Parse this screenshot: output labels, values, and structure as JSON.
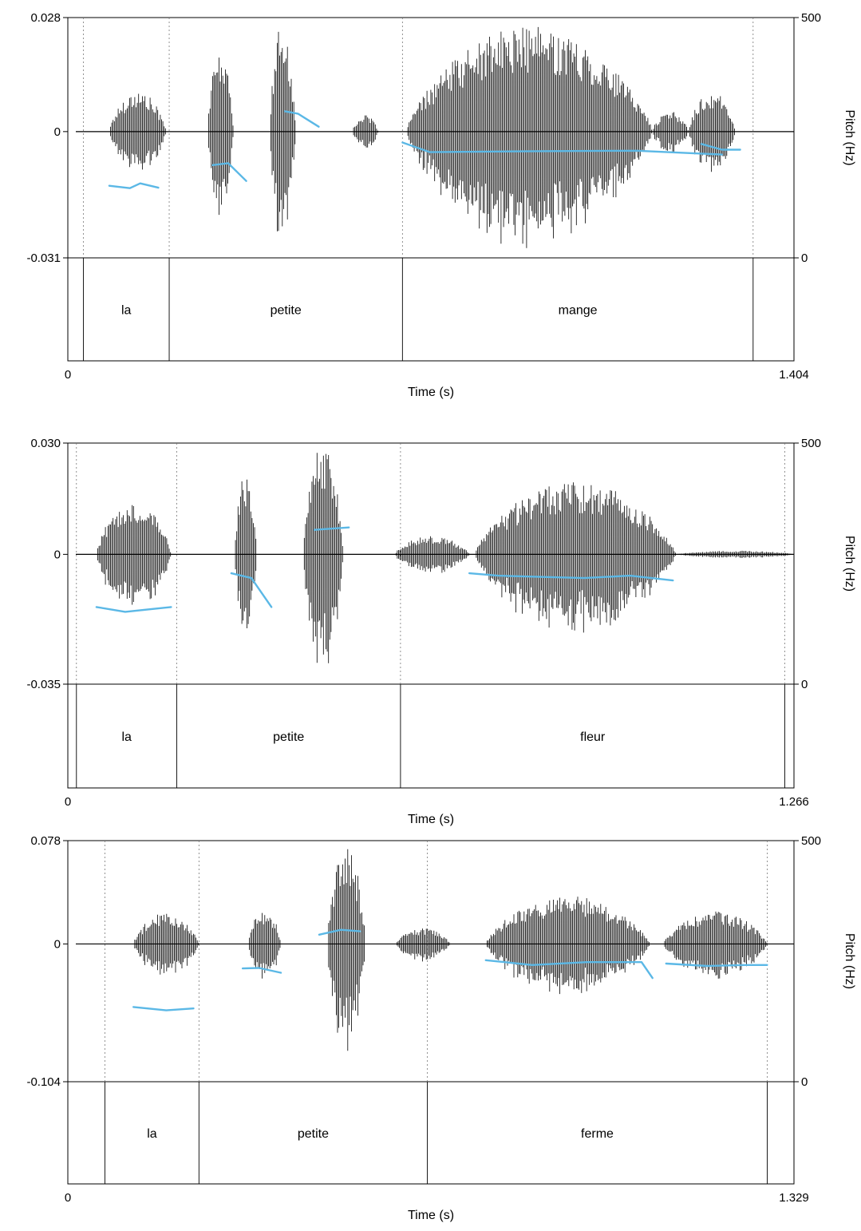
{
  "chart_data": [
    {
      "type": "line",
      "title": "",
      "xlabel": "Time (s)",
      "ylabel_right": "Pitch (Hz)",
      "x_range": [
        0,
        1.404
      ],
      "x_tick_labels": [
        "0",
        "1.404"
      ],
      "amplitude_range": [
        -0.031,
        0.028
      ],
      "amplitude_tick_labels": [
        "0.028",
        "0",
        "-0.031"
      ],
      "pitch_range": [
        0,
        500
      ],
      "pitch_tick_labels": [
        "500",
        "0"
      ],
      "pitch_color": "#5BB8E6",
      "waveform_color": "#000000",
      "words": [
        {
          "label": "la",
          "start": 0.03,
          "end": 0.196
        },
        {
          "label": "petite",
          "start": 0.196,
          "end": 0.647
        },
        {
          "label": "mange",
          "start": 0.647,
          "end": 1.325
        }
      ],
      "segments": [
        {
          "start": 0.08,
          "end": 0.19,
          "peak": 0.01
        },
        {
          "start": 0.27,
          "end": 0.32,
          "peak": 0.02
        },
        {
          "start": 0.39,
          "end": 0.44,
          "peak": 0.027
        },
        {
          "start": 0.55,
          "end": 0.6,
          "peak": 0.004
        },
        {
          "start": 0.655,
          "end": 1.13,
          "peak": 0.026
        },
        {
          "start": 1.13,
          "end": 1.2,
          "peak": 0.005
        },
        {
          "start": 1.2,
          "end": 1.29,
          "peak": 0.01
        }
      ],
      "pitch_contours": [
        [
          [
            0.08,
            150
          ],
          [
            0.12,
            145
          ],
          [
            0.14,
            155
          ],
          [
            0.175,
            146
          ]
        ],
        [
          [
            0.28,
            193
          ],
          [
            0.31,
            197
          ],
          [
            0.345,
            160
          ]
        ],
        [
          [
            0.42,
            305
          ],
          [
            0.445,
            300
          ],
          [
            0.485,
            273
          ]
        ],
        [
          [
            0.647,
            240
          ],
          [
            0.7,
            220
          ],
          [
            0.9,
            222
          ],
          [
            1.1,
            223
          ],
          [
            1.265,
            215
          ]
        ],
        [
          [
            1.225,
            237
          ],
          [
            1.265,
            225
          ],
          [
            1.3,
            225
          ]
        ]
      ]
    },
    {
      "type": "line",
      "title": "",
      "xlabel": "Time (s)",
      "ylabel_right": "Pitch (Hz)",
      "x_range": [
        0,
        1.266
      ],
      "x_tick_labels": [
        "0",
        "1.266"
      ],
      "amplitude_range": [
        -0.035,
        0.03
      ],
      "amplitude_tick_labels": [
        "0.030",
        "0",
        "-0.035"
      ],
      "pitch_range": [
        0,
        500
      ],
      "pitch_tick_labels": [
        "500",
        "0"
      ],
      "pitch_color": "#5BB8E6",
      "waveform_color": "#000000",
      "words": [
        {
          "label": "la",
          "start": 0.015,
          "end": 0.19
        },
        {
          "label": "petite",
          "start": 0.19,
          "end": 0.58
        },
        {
          "label": "fleur",
          "start": 0.58,
          "end": 1.25
        }
      ],
      "segments": [
        {
          "start": 0.05,
          "end": 0.18,
          "peak": 0.015
        },
        {
          "start": 0.29,
          "end": 0.33,
          "peak": 0.022
        },
        {
          "start": 0.41,
          "end": 0.48,
          "peak": 0.03
        },
        {
          "start": 0.57,
          "end": 0.7,
          "peak": 0.005
        },
        {
          "start": 0.71,
          "end": 1.06,
          "peak": 0.02
        },
        {
          "start": 1.06,
          "end": 1.266,
          "peak": 0.001
        }
      ],
      "pitch_contours": [
        [
          [
            0.05,
            160
          ],
          [
            0.1,
            150
          ],
          [
            0.18,
            160
          ]
        ],
        [
          [
            0.285,
            230
          ],
          [
            0.32,
            220
          ],
          [
            0.355,
            160
          ]
        ],
        [
          [
            0.43,
            320
          ],
          [
            0.49,
            325
          ]
        ],
        [
          [
            0.7,
            230
          ],
          [
            0.75,
            225
          ],
          [
            0.9,
            220
          ],
          [
            0.98,
            225
          ],
          [
            1.055,
            215
          ]
        ]
      ]
    },
    {
      "type": "line",
      "title": "",
      "xlabel": "Time (s)",
      "ylabel_right": "Pitch (Hz)",
      "x_range": [
        0,
        1.329
      ],
      "x_tick_labels": [
        "0",
        "1.329"
      ],
      "amplitude_range": [
        -0.104,
        0.078
      ],
      "amplitude_tick_labels": [
        "0.078",
        "0",
        "-0.104"
      ],
      "pitch_range": [
        0,
        500
      ],
      "pitch_tick_labels": [
        "500",
        "0"
      ],
      "pitch_color": "#5BB8E6",
      "waveform_color": "#000000",
      "words": [
        {
          "label": "la",
          "start": 0.068,
          "end": 0.24
        },
        {
          "label": "petite",
          "start": 0.24,
          "end": 0.658
        },
        {
          "label": "ferme",
          "start": 0.658,
          "end": 1.28
        }
      ],
      "segments": [
        {
          "start": 0.12,
          "end": 0.24,
          "peak": 0.024
        },
        {
          "start": 0.33,
          "end": 0.39,
          "peak": 0.027
        },
        {
          "start": 0.475,
          "end": 0.545,
          "peak": 0.078
        },
        {
          "start": 0.6,
          "end": 0.7,
          "peak": 0.012
        },
        {
          "start": 0.765,
          "end": 1.065,
          "peak": 0.037
        },
        {
          "start": 1.09,
          "end": 1.28,
          "peak": 0.025
        }
      ],
      "pitch_contours": [
        [
          [
            0.12,
            155
          ],
          [
            0.18,
            148
          ],
          [
            0.23,
            152
          ]
        ],
        [
          [
            0.32,
            235
          ],
          [
            0.35,
            236
          ],
          [
            0.39,
            226
          ]
        ],
        [
          [
            0.46,
            305
          ],
          [
            0.5,
            315
          ],
          [
            0.535,
            312
          ]
        ],
        [
          [
            0.765,
            252
          ],
          [
            0.85,
            242
          ],
          [
            0.95,
            248
          ],
          [
            1.05,
            248
          ],
          [
            1.07,
            215
          ]
        ],
        [
          [
            1.095,
            245
          ],
          [
            1.17,
            240
          ],
          [
            1.24,
            242
          ],
          [
            1.28,
            242
          ]
        ]
      ]
    }
  ]
}
